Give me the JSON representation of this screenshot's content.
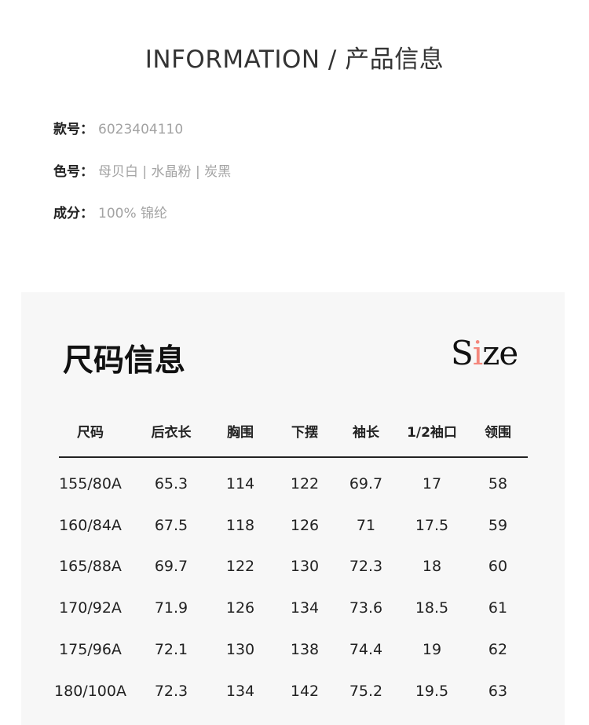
{
  "header": {
    "title": "INFORMATION / 产品信息"
  },
  "info": [
    {
      "label": "款号：",
      "value": "6023404110"
    },
    {
      "label": "色号：",
      "value": "母贝白 | 水晶粉 | 炭黑"
    },
    {
      "label": "成分：",
      "value": "100% 锦纶"
    }
  ],
  "size_section": {
    "title": "尺码信息",
    "logo": {
      "s": "S",
      "i": "i",
      "ze": "ze"
    },
    "accent": "#f4877c"
  },
  "table": {
    "headers": [
      "尺码",
      "后衣长",
      "胸围",
      "下摆",
      "袖长",
      "1/2袖口",
      "领围"
    ],
    "rows": [
      [
        "155/80A",
        "65.3",
        "114",
        "122",
        "69.7",
        "17",
        "58"
      ],
      [
        "160/84A",
        "67.5",
        "118",
        "126",
        "71",
        "17.5",
        "59"
      ],
      [
        "165/88A",
        "69.7",
        "122",
        "130",
        "72.3",
        "18",
        "60"
      ],
      [
        "170/92A",
        "71.9",
        "126",
        "134",
        "73.6",
        "18.5",
        "61"
      ],
      [
        "175/96A",
        "72.1",
        "130",
        "138",
        "74.4",
        "19",
        "62"
      ],
      [
        "180/100A",
        "72.3",
        "134",
        "142",
        "75.2",
        "19.5",
        "63"
      ]
    ]
  }
}
